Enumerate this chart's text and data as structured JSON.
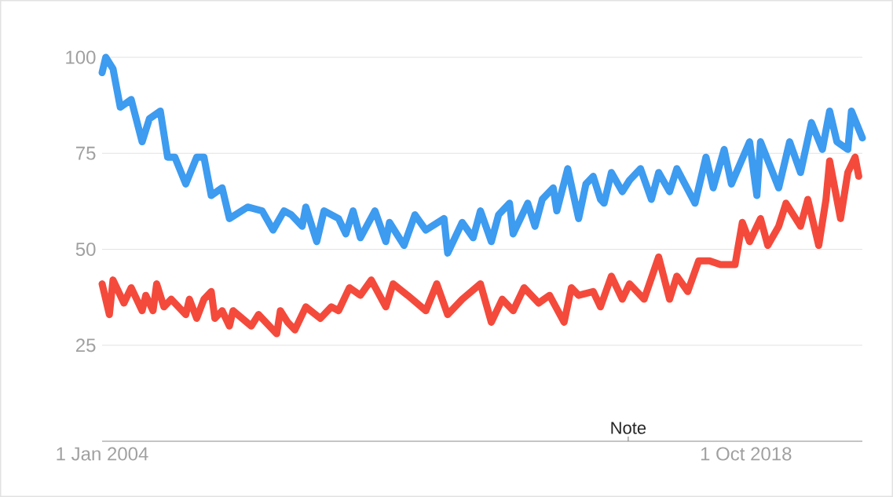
{
  "chart_data": {
    "type": "line",
    "xlim": [
      "2004-01",
      "2021-06"
    ],
    "xticks": [
      {
        "value": "2004-01",
        "label": "1 Jan 2004"
      },
      {
        "value": "2018-10",
        "label": "1 Oct 2018"
      }
    ],
    "ylim": [
      0,
      100
    ],
    "yticks": [
      25,
      50,
      75,
      100
    ],
    "grid": "y",
    "marker": "none",
    "line_style": "solid",
    "annotations": [
      "Note"
    ],
    "series": [
      {
        "color": "#3d9bf0",
        "x": [
          "2004-01",
          "2004-02",
          "2004-04",
          "2004-06",
          "2004-09",
          "2004-12",
          "2005-02",
          "2005-05",
          "2005-07",
          "2005-09",
          "2005-12",
          "2006-03",
          "2006-05",
          "2006-07",
          "2006-10",
          "2006-12",
          "2007-05",
          "2007-09",
          "2007-12",
          "2008-03",
          "2008-05",
          "2008-08",
          "2008-09",
          "2008-12",
          "2009-02",
          "2009-06",
          "2009-08",
          "2009-10",
          "2009-12",
          "2010-04",
          "2010-07",
          "2010-08",
          "2010-12",
          "2011-03",
          "2011-06",
          "2011-11",
          "2011-12",
          "2012-04",
          "2012-07",
          "2012-09",
          "2012-12",
          "2013-02",
          "2013-05",
          "2013-06",
          "2013-10",
          "2013-12",
          "2014-02",
          "2014-05",
          "2014-06",
          "2014-09",
          "2014-12",
          "2015-02",
          "2015-04",
          "2015-06",
          "2015-07",
          "2015-09",
          "2015-12",
          "2016-02",
          "2016-05",
          "2016-08",
          "2016-10",
          "2017-01",
          "2017-03",
          "2017-08",
          "2017-11",
          "2018-01",
          "2018-04",
          "2018-06",
          "2018-11",
          "2019-01",
          "2019-02",
          "2019-07",
          "2019-10",
          "2020-01",
          "2020-04",
          "2020-07",
          "2020-09",
          "2020-11",
          "2021-02",
          "2021-03",
          "2021-06"
        ],
        "values": [
          96,
          100,
          97,
          87,
          89,
          78,
          84,
          86,
          74,
          74,
          67,
          74,
          74,
          64,
          66,
          58,
          61,
          60,
          55,
          60,
          59,
          56,
          61,
          52,
          60,
          58,
          54,
          60,
          53,
          60,
          52,
          57,
          51,
          59,
          55,
          58,
          49,
          57,
          53,
          60,
          52,
          59,
          62,
          54,
          62,
          56,
          63,
          66,
          60,
          71,
          58,
          67,
          69,
          63,
          62,
          70,
          65,
          68,
          71,
          63,
          70,
          65,
          71,
          62,
          74,
          66,
          76,
          67,
          78,
          64,
          78,
          66,
          78,
          70,
          83,
          76,
          86,
          78,
          76,
          86,
          79
        ]
      },
      {
        "color": "#f44a3c",
        "x": [
          "2004-01",
          "2004-03",
          "2004-04",
          "2004-07",
          "2004-09",
          "2004-12",
          "2005-01",
          "2005-03",
          "2005-04",
          "2005-06",
          "2005-08",
          "2005-12",
          "2006-01",
          "2006-03",
          "2006-05",
          "2006-07",
          "2006-08",
          "2006-10",
          "2006-12",
          "2007-01",
          "2007-06",
          "2007-08",
          "2008-01",
          "2008-02",
          "2008-04",
          "2008-06",
          "2008-09",
          "2009-01",
          "2009-04",
          "2009-06",
          "2009-09",
          "2009-12",
          "2010-03",
          "2010-07",
          "2010-09",
          "2011-01",
          "2011-06",
          "2011-09",
          "2011-12",
          "2012-04",
          "2012-09",
          "2012-12",
          "2013-03",
          "2013-06",
          "2013-09",
          "2014-01",
          "2014-04",
          "2014-08",
          "2014-10",
          "2014-12",
          "2015-04",
          "2015-06",
          "2015-09",
          "2015-12",
          "2016-02",
          "2016-06",
          "2016-10",
          "2017-01",
          "2017-03",
          "2017-06",
          "2017-09",
          "2017-12",
          "2018-03",
          "2018-07",
          "2018-09",
          "2018-11",
          "2019-02",
          "2019-04",
          "2019-07",
          "2019-09",
          "2020-01",
          "2020-03",
          "2020-06",
          "2020-08",
          "2020-09",
          "2020-12",
          "2021-02",
          "2021-04",
          "2021-05"
        ],
        "values": [
          41,
          33,
          42,
          36,
          40,
          34,
          38,
          34,
          41,
          35,
          37,
          33,
          37,
          32,
          37,
          39,
          32,
          34,
          30,
          34,
          30,
          33,
          28,
          34,
          31,
          29,
          35,
          32,
          35,
          34,
          40,
          38,
          42,
          35,
          41,
          38,
          34,
          41,
          33,
          37,
          41,
          31,
          37,
          34,
          40,
          36,
          38,
          31,
          40,
          38,
          39,
          35,
          43,
          37,
          41,
          37,
          48,
          37,
          43,
          39,
          47,
          47,
          46,
          46,
          57,
          52,
          58,
          51,
          56,
          62,
          56,
          63,
          51,
          63,
          73,
          58,
          70,
          74,
          69
        ]
      }
    ]
  }
}
